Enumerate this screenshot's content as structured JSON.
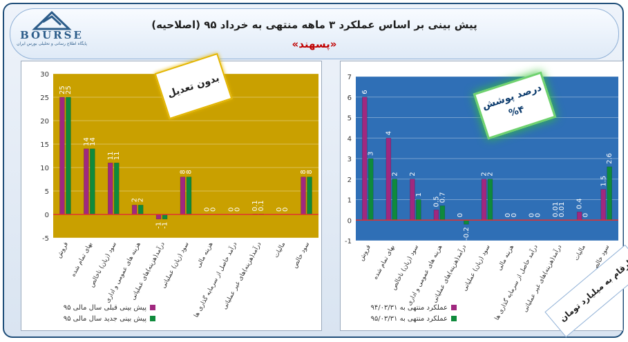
{
  "header": {
    "title": "پیش بینی بر اساس عملکرد ۳ ماهه منتهی به خرداد ۹۵ (اصلاحیه)",
    "subtitle": "«پسهند»",
    "logo_word": "BOURSE",
    "logo_sub": "پایگاه اطلاع رسانی و تحلیلی بورس ایران"
  },
  "stamps": {
    "left": "بدون تعدیل",
    "right_title": "درصد پوشش",
    "right_value": "%۴"
  },
  "corner_note": "ارقام به میلیارد تومان",
  "colors": {
    "magenta": "#a0287f",
    "green": "#0f8a3c",
    "gold": "#c9a000",
    "blue": "#2f6fb6",
    "axis_line": "#e03030"
  },
  "chart_data": [
    {
      "type": "bar",
      "categories": [
        "فروش",
        "بهای تمام شده",
        "سود (زیان) ناخالص",
        "هزینه های عمومی و اداری",
        "درآمد(هزینه)های عملیاتی",
        "سود (زیان) عملیاتی",
        "هزینه مالی",
        "درآمد حاصل از سرمایه گذاری ها",
        "درآمد(هزینه)های غیر عملیاتی",
        "مالیات",
        "سود خالص"
      ],
      "series": [
        {
          "name": "پیش بینی قبلی سال مالی ۹۵",
          "values": [
            25,
            14,
            11,
            2,
            -1,
            8,
            0,
            0,
            0.1,
            0,
            8
          ],
          "labels": [
            "25",
            "14",
            "11",
            "2",
            "-1",
            "8",
            "0",
            "0",
            "0.1",
            "0",
            "8"
          ],
          "color": "#a0287f"
        },
        {
          "name": "پیش بینی جدید سال مالی ۹۵",
          "values": [
            25,
            14,
            11,
            2,
            -1,
            8,
            0,
            0,
            0.1,
            0,
            8
          ],
          "labels": [
            "25",
            "14",
            "11",
            "2",
            "-1",
            "8",
            "0",
            "0",
            "0.1",
            "0",
            "8"
          ],
          "color": "#0f8a3c"
        }
      ],
      "ylim": [
        -5,
        30
      ],
      "yticks": [
        "-5",
        "0",
        "5",
        "10",
        "15",
        "20",
        "25",
        "30"
      ],
      "background": "#c9a000",
      "legend": "bottom"
    },
    {
      "type": "bar",
      "categories": [
        "فروش",
        "بهای تمام شده",
        "سود (زیان) ناخالص",
        "هزینه های عمومی و اداری",
        "درآمد(هزینه)های عملیاتی",
        "سود (زیان) عملیاتی",
        "هزینه مالی",
        "درآمد حاصل از سرمایه گذاری ها",
        "درآمد(هزینه)های غیر عملیاتی",
        "مالیات",
        "سود خالص"
      ],
      "series": [
        {
          "name": "عملکرد منتهی به ۹۴/۰۳/۳۱",
          "values": [
            6,
            4,
            2,
            0.5,
            0,
            2,
            0,
            0,
            0.01,
            0.4,
            1.5
          ],
          "labels": [
            "6",
            "4",
            "2",
            "0.5",
            "0",
            "2",
            "0",
            "0",
            "0.01",
            "0.4",
            "1.5"
          ],
          "color": "#a0287f"
        },
        {
          "name": "عملکرد منتهی به ۹۵/۰۳/۳۱",
          "values": [
            3,
            2,
            1,
            0.7,
            -0.2,
            2,
            0,
            0,
            0.01,
            0,
            2.6
          ],
          "labels": [
            "3",
            "2",
            "1",
            "0.7",
            "-0.2",
            "2",
            "0",
            "0",
            "0.01",
            "0",
            "2.6"
          ],
          "color": "#0f8a3c"
        }
      ],
      "ylim": [
        -1,
        7
      ],
      "yticks": [
        "-1",
        "0",
        "1",
        "2",
        "3",
        "4",
        "5",
        "6",
        "7"
      ],
      "background": "#2f6fb6",
      "legend": "bottom"
    }
  ]
}
